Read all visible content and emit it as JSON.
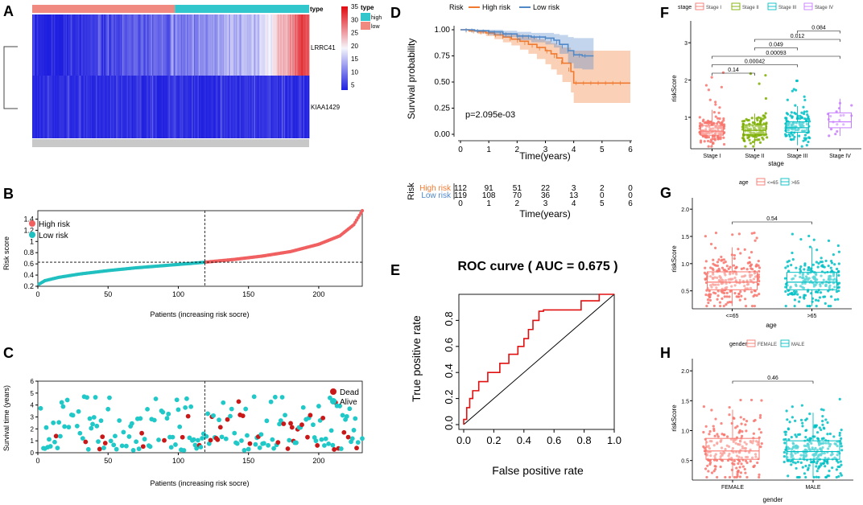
{
  "panels": {
    "A": {
      "letter": "A",
      "genes": [
        "LRRC41",
        "KIAA1429"
      ],
      "legend_title": "type",
      "legend_items": [
        "high",
        "low"
      ],
      "colorbar_ticks": [
        35,
        30,
        25,
        20,
        15,
        10,
        5
      ],
      "colors": {
        "high": "#30c6cc",
        "low": "#f08a80",
        "hm_low": "#1f1fe0",
        "hm_mid": "#f5f5fb",
        "hm_high": "#e00a10"
      }
    },
    "B": {
      "letter": "B",
      "xlabel": "Patients (increasing risk socre)",
      "ylabel": "Risk score",
      "legend": [
        "High risk",
        "Low risk"
      ],
      "colors": {
        "high": "#f06060",
        "low": "#20c0c0"
      }
    },
    "C": {
      "letter": "C",
      "xlabel": "Patients (increasing risk socre)",
      "ylabel": "Survival time (years)",
      "legend": [
        "Dead",
        "Alive"
      ],
      "colors": {
        "dead": "#c81818",
        "alive": "#20c8c8"
      }
    },
    "D": {
      "letter": "D",
      "legend_title": "Risk",
      "legend": [
        "High risk",
        "Low risk"
      ],
      "xlabel": "Time(years)",
      "ylabel": "Survival probability",
      "pvalue": "p=2.095e-03",
      "colors": {
        "high": "#f07a30",
        "low": "#5088c8"
      },
      "table": {
        "title": "Risk",
        "rows": [
          {
            "label": "High risk",
            "values": [
              112,
              91,
              51,
              22,
              3,
              2,
              0
            ]
          },
          {
            "label": "Low risk",
            "values": [
              119,
              108,
              70,
              36,
              13,
              0,
              0
            ]
          }
        ],
        "xlabel": "Time(years)"
      }
    },
    "E": {
      "letter": "E",
      "title": "ROC curve ( AUC =  0.675 )",
      "xlabel": "False positive rate",
      "ylabel": "True positive rate"
    },
    "F": {
      "letter": "F",
      "legend_title": "stage",
      "legend": [
        "Stage I",
        "Stage II",
        "Stage III",
        "Stage IV"
      ],
      "xlabel": "stage",
      "ylabel": "riskScore",
      "colors": [
        "#f8766d",
        "#7cae00",
        "#00bfc4",
        "#c77cff"
      ],
      "comparisons": [
        "0.14",
        "0.00042",
        "0.00093",
        "0.049",
        "0.012",
        "0.084"
      ]
    },
    "G": {
      "letter": "G",
      "legend_title": "age",
      "legend": [
        "<=65",
        ">65"
      ],
      "xlabel": "age",
      "ylabel": "riskScore",
      "colors": [
        "#f8766d",
        "#00bfc4"
      ],
      "comparisons": [
        "0.54"
      ]
    },
    "H": {
      "letter": "H",
      "legend_title": "gender",
      "legend": [
        "FEMALE",
        "MALE"
      ],
      "xlabel": "gender",
      "ylabel": "riskScore",
      "colors": [
        "#f8766d",
        "#00bfc4"
      ],
      "comparisons": [
        "0.46"
      ]
    }
  },
  "chart_data": [
    {
      "id": "A",
      "type": "heatmap",
      "rows": [
        "LRRC41",
        "KIAA1429"
      ],
      "n_samples": 231,
      "groups": [
        {
          "name": "low",
          "n": 119
        },
        {
          "name": "high",
          "n": 112
        }
      ],
      "color_range": [
        5,
        35
      ]
    },
    {
      "id": "B",
      "type": "scatter",
      "title": "",
      "xlabel": "Patients (increasing risk socre)",
      "ylabel": "Risk score",
      "xlim": [
        0,
        231
      ],
      "ylim": [
        0.2,
        1.55
      ],
      "xticks": [
        0,
        50,
        100,
        150,
        200
      ],
      "yticks": [
        0.2,
        0.4,
        0.6,
        0.8,
        1.0,
        1.2,
        1.4
      ],
      "cutoff_index": 119,
      "cutoff_score": 0.63,
      "curve": [
        [
          1,
          0.24
        ],
        [
          5,
          0.3
        ],
        [
          15,
          0.36
        ],
        [
          30,
          0.42
        ],
        [
          50,
          0.48
        ],
        [
          70,
          0.53
        ],
        [
          90,
          0.57
        ],
        [
          110,
          0.61
        ],
        [
          119,
          0.63
        ],
        [
          140,
          0.68
        ],
        [
          160,
          0.74
        ],
        [
          180,
          0.82
        ],
        [
          200,
          0.95
        ],
        [
          215,
          1.1
        ],
        [
          225,
          1.3
        ],
        [
          231,
          1.55
        ]
      ]
    },
    {
      "id": "C",
      "type": "scatter",
      "title": "",
      "xlabel": "Patients (increasing risk socre)",
      "ylabel": "Survival time (years)",
      "xlim": [
        0,
        231
      ],
      "ylim": [
        0,
        6
      ],
      "xticks": [
        0,
        50,
        100,
        150,
        200
      ],
      "yticks": [
        0,
        1,
        2,
        3,
        4,
        5,
        6
      ],
      "cutoff_index": 119,
      "n_points": 231
    },
    {
      "id": "D",
      "type": "line",
      "title": "",
      "xlabel": "Time(years)",
      "ylabel": "Survival probability",
      "xlim": [
        0,
        6.3
      ],
      "ylim": [
        0,
        1.0
      ],
      "xticks": [
        0,
        1,
        2,
        3,
        4,
        5,
        6
      ],
      "yticks": [
        0.0,
        0.25,
        0.5,
        0.75,
        1.0
      ],
      "series": [
        {
          "name": "High risk",
          "x": [
            0,
            0.3,
            0.6,
            0.9,
            1.2,
            1.5,
            1.8,
            2.1,
            2.4,
            2.7,
            3.0,
            3.2,
            3.4,
            3.6,
            3.9,
            4.0,
            6.0
          ],
          "y": [
            1.0,
            0.99,
            0.98,
            0.97,
            0.95,
            0.93,
            0.91,
            0.89,
            0.86,
            0.83,
            0.8,
            0.77,
            0.73,
            0.68,
            0.6,
            0.49,
            0.49
          ],
          "ci_lo": [
            1.0,
            0.98,
            0.96,
            0.94,
            0.91,
            0.88,
            0.85,
            0.81,
            0.77,
            0.72,
            0.67,
            0.62,
            0.57,
            0.5,
            0.4,
            0.3,
            0.3
          ],
          "ci_hi": [
            1.0,
            1.0,
            1.0,
            0.99,
            0.98,
            0.97,
            0.96,
            0.95,
            0.93,
            0.91,
            0.89,
            0.87,
            0.85,
            0.83,
            0.8,
            0.8,
            0.8
          ]
        },
        {
          "name": "Low risk",
          "x": [
            0,
            0.5,
            1.0,
            1.5,
            2.0,
            2.5,
            3.0,
            3.3,
            3.5,
            3.8,
            4.0,
            4.3,
            4.7
          ],
          "y": [
            1.0,
            0.99,
            0.98,
            0.96,
            0.94,
            0.93,
            0.92,
            0.9,
            0.86,
            0.8,
            0.76,
            0.75,
            0.75
          ],
          "ci_lo": [
            1.0,
            0.98,
            0.95,
            0.93,
            0.9,
            0.88,
            0.86,
            0.83,
            0.77,
            0.68,
            0.63,
            0.62,
            0.62
          ],
          "ci_hi": [
            1.0,
            1.0,
            1.0,
            0.99,
            0.98,
            0.97,
            0.97,
            0.96,
            0.95,
            0.93,
            0.92,
            0.92,
            0.92
          ]
        }
      ]
    },
    {
      "id": "D_table",
      "type": "table",
      "columns": [
        0,
        1,
        2,
        3,
        4,
        5,
        6
      ],
      "rows": [
        {
          "label": "High risk",
          "values": [
            112,
            91,
            51,
            22,
            3,
            2,
            0
          ]
        },
        {
          "label": "Low risk",
          "values": [
            119,
            108,
            70,
            36,
            13,
            0,
            0
          ]
        }
      ]
    },
    {
      "id": "E",
      "type": "line",
      "title": "ROC curve ( AUC =  0.675 )",
      "xlabel": "False positive rate",
      "ylabel": "True positive rate",
      "xlim": [
        0,
        1
      ],
      "ylim": [
        0,
        1
      ],
      "xticks": [
        0.0,
        0.2,
        0.4,
        0.6,
        0.8,
        1.0
      ],
      "yticks": [
        0.0,
        0.2,
        0.4,
        0.6,
        0.8
      ],
      "auc": 0.675,
      "fpr": [
        0.0,
        0.0,
        0.02,
        0.02,
        0.04,
        0.04,
        0.06,
        0.06,
        0.1,
        0.1,
        0.16,
        0.16,
        0.24,
        0.24,
        0.3,
        0.3,
        0.36,
        0.36,
        0.4,
        0.4,
        0.43,
        0.43,
        0.46,
        0.46,
        0.5,
        0.5,
        0.53,
        0.53,
        0.78,
        0.78,
        0.9,
        0.9,
        1.0,
        1.0
      ],
      "tpr": [
        0.0,
        0.04,
        0.04,
        0.13,
        0.13,
        0.2,
        0.2,
        0.26,
        0.26,
        0.33,
        0.33,
        0.4,
        0.4,
        0.47,
        0.47,
        0.54,
        0.54,
        0.6,
        0.6,
        0.66,
        0.66,
        0.73,
        0.73,
        0.8,
        0.8,
        0.87,
        0.87,
        0.88,
        0.88,
        0.95,
        0.95,
        1.0,
        1.0,
        1.0
      ],
      "reference_line": [
        [
          0,
          0
        ],
        [
          1,
          1
        ]
      ]
    },
    {
      "id": "F",
      "type": "box",
      "xlabel": "stage",
      "ylabel": "riskScore",
      "categories": [
        "Stage I",
        "Stage II",
        "Stage III",
        "Stage IV"
      ],
      "ylim": [
        0.2,
        3.5
      ],
      "yticks": [
        1,
        2,
        3
      ],
      "boxes": [
        {
          "q1": 0.52,
          "median": 0.63,
          "q3": 0.78,
          "lo": 0.22,
          "hi": 1.2
        },
        {
          "q1": 0.54,
          "median": 0.65,
          "q3": 0.8,
          "lo": 0.25,
          "hi": 1.1
        },
        {
          "q1": 0.6,
          "median": 0.72,
          "q3": 0.88,
          "lo": 0.25,
          "hi": 1.3
        },
        {
          "q1": 0.72,
          "median": 0.88,
          "q3": 1.12,
          "lo": 0.5,
          "hi": 1.5
        }
      ],
      "comparisons": [
        {
          "from": "Stage I",
          "to": "Stage II",
          "p": "0.14"
        },
        {
          "from": "Stage I",
          "to": "Stage III",
          "p": "0.00042"
        },
        {
          "from": "Stage I",
          "to": "Stage IV",
          "p": "0.00093"
        },
        {
          "from": "Stage II",
          "to": "Stage III",
          "p": "0.049"
        },
        {
          "from": "Stage II",
          "to": "Stage IV",
          "p": "0.012"
        },
        {
          "from": "Stage III",
          "to": "Stage IV",
          "p": "0.084"
        }
      ]
    },
    {
      "id": "G",
      "type": "box",
      "xlabel": "age",
      "ylabel": "riskScore",
      "categories": [
        "<=65",
        ">65"
      ],
      "ylim": [
        0.2,
        2.15
      ],
      "yticks": [
        0.5,
        1.0,
        1.5,
        2.0
      ],
      "boxes": [
        {
          "q1": 0.52,
          "median": 0.66,
          "q3": 0.85,
          "lo": 0.22,
          "hi": 1.3
        },
        {
          "q1": 0.52,
          "median": 0.66,
          "q3": 0.84,
          "lo": 0.22,
          "hi": 1.3
        }
      ],
      "comparisons": [
        {
          "from": "<=65",
          "to": ">65",
          "p": "0.54"
        }
      ]
    },
    {
      "id": "H",
      "type": "box",
      "xlabel": "gender",
      "ylabel": "riskScore",
      "categories": [
        "FEMALE",
        "MALE"
      ],
      "ylim": [
        0.2,
        2.15
      ],
      "yticks": [
        0.5,
        1.0,
        1.5,
        2.0
      ],
      "boxes": [
        {
          "q1": 0.52,
          "median": 0.66,
          "q3": 0.87,
          "lo": 0.22,
          "hi": 1.35
        },
        {
          "q1": 0.52,
          "median": 0.65,
          "q3": 0.83,
          "lo": 0.22,
          "hi": 1.3
        }
      ],
      "comparisons": [
        {
          "from": "FEMALE",
          "to": "MALE",
          "p": "0.46"
        }
      ]
    }
  ]
}
